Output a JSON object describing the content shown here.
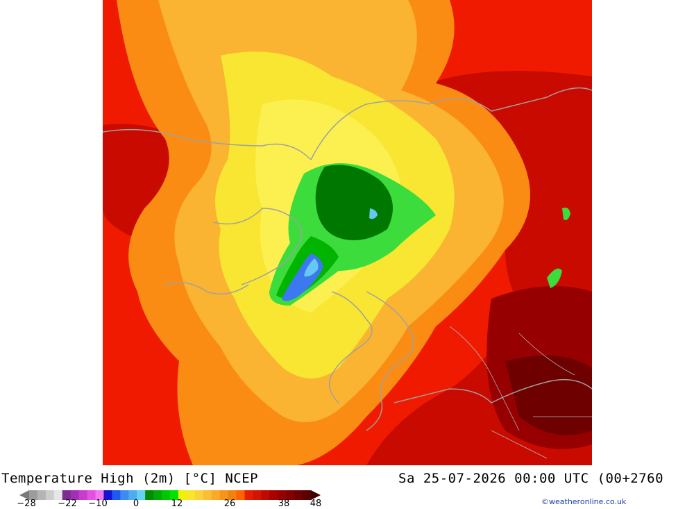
{
  "title": "Temperature High (2m) [°C] NCEP",
  "datetime": "Sa 25-07-2026 00:00 UTC (00+2760",
  "credit": "©weatheronline.co.uk",
  "legend": {
    "ticks": [
      "-28",
      "-22",
      "-10",
      "0",
      "12",
      "26",
      "38",
      "48"
    ],
    "colors": [
      "#9c9c9c",
      "#b4b4b4",
      "#cdcdcd",
      "#e6e6e6",
      "#7c2d91",
      "#a030b4",
      "#c83ccd",
      "#e650e1",
      "#f078f0",
      "#1414d2",
      "#1e5af0",
      "#3c8cf0",
      "#50aaf0",
      "#64d2f0",
      "#008c00",
      "#00aa00",
      "#00c800",
      "#00e100",
      "#f0f00a",
      "#fae628",
      "#fad23c",
      "#fabe32",
      "#faaa28",
      "#f59619",
      "#f08214",
      "#ff6400",
      "#e61e00",
      "#d21400",
      "#be0a00",
      "#aa0000",
      "#960000",
      "#820000",
      "#6e0000",
      "#5a0000"
    ]
  },
  "map": {
    "colors": {
      "hot_red": "#f01a00",
      "dark_red": "#a00000",
      "orange": "#fa8c14",
      "light_orange": "#fab432",
      "yellow": "#f8e632",
      "pale_yellow": "#fcf050",
      "green": "#00b400",
      "dark_green": "#007800",
      "light_green": "#3cdc3c",
      "blue": "#3c78f0",
      "light_blue": "#64c8f0",
      "coast": "#a0a0a0"
    }
  }
}
